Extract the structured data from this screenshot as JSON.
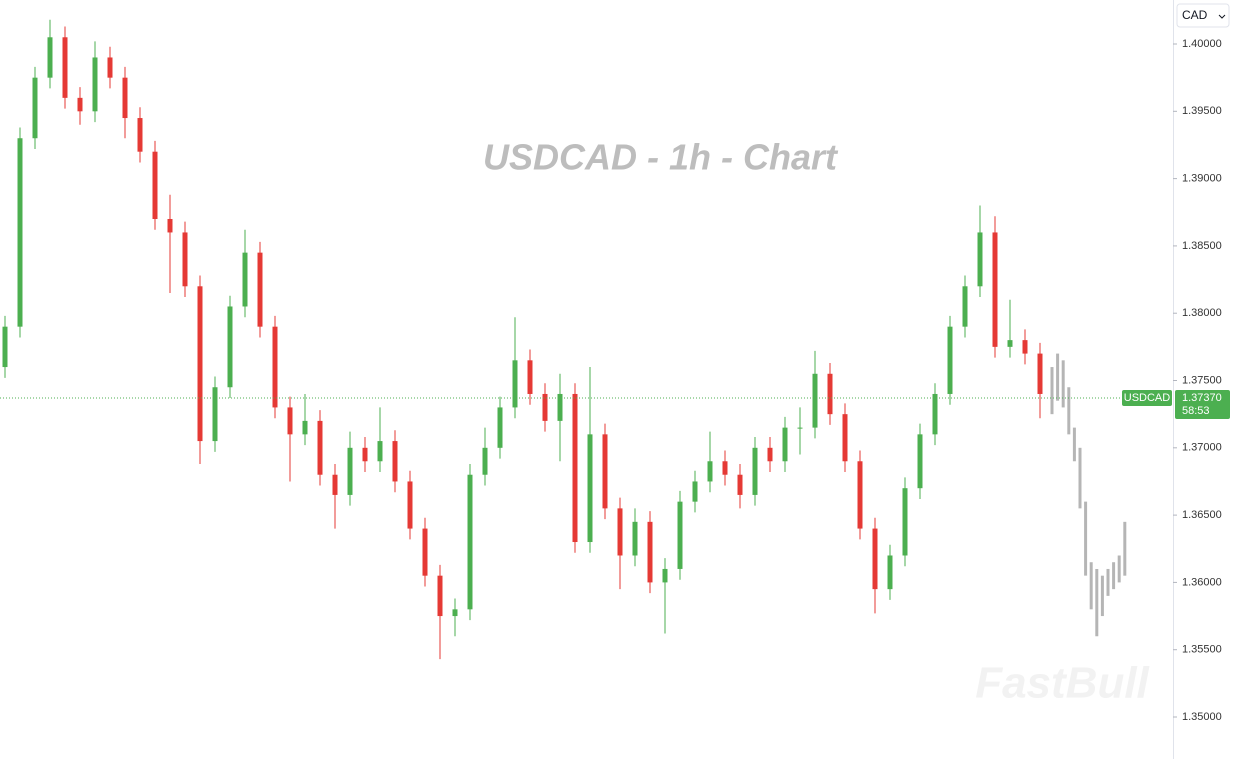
{
  "chart_data": {
    "type": "candlestick",
    "title": "USDCAD  - 1h - Chart",
    "currency": "CAD",
    "watermark": "FastBull",
    "up_color": "#4caf50",
    "down_color": "#e53935",
    "projection_color": "#b5b5b5",
    "ylim": [
      1.34688,
      1.40327
    ],
    "yticks": [
      {
        "value": 1.4,
        "label": "1.40000"
      },
      {
        "value": 1.395,
        "label": "1.39500"
      },
      {
        "value": 1.39,
        "label": "1.39000"
      },
      {
        "value": 1.385,
        "label": "1.38500"
      },
      {
        "value": 1.38,
        "label": "1.38000"
      },
      {
        "value": 1.375,
        "label": "1.37500"
      },
      {
        "value": 1.37,
        "label": "1.37000"
      },
      {
        "value": 1.365,
        "label": "1.36500"
      },
      {
        "value": 1.36,
        "label": "1.36000"
      },
      {
        "value": 1.355,
        "label": "1.35500"
      },
      {
        "value": 1.35,
        "label": "1.35000"
      }
    ],
    "open": [
      1.376,
      1.379,
      1.393,
      1.3975,
      1.4005,
      1.396,
      1.395,
      1.399,
      1.3975,
      1.3945,
      1.392,
      1.387,
      1.386,
      1.382,
      1.3705,
      1.3745,
      1.3805,
      1.3845,
      1.379,
      1.373,
      1.371,
      1.372,
      1.368,
      1.3665,
      1.37,
      1.369,
      1.3705,
      1.3675,
      1.364,
      1.3605,
      1.3575,
      1.358,
      1.368,
      1.37,
      1.373,
      1.3765,
      1.374,
      1.372,
      1.374,
      1.363,
      1.371,
      1.3655,
      1.362,
      1.3645,
      1.36,
      1.361,
      1.366,
      1.3675,
      1.369,
      1.368,
      1.3665,
      1.37,
      1.369,
      1.3715,
      1.3715,
      1.3755,
      1.3725,
      1.369,
      1.364,
      1.3595,
      1.362,
      1.367,
      1.371,
      1.374,
      1.379,
      1.382,
      1.386,
      1.3775,
      1.378,
      1.377
    ],
    "high": [
      1.3798,
      1.3938,
      1.3983,
      1.4018,
      1.4013,
      1.3968,
      1.4002,
      1.3998,
      1.3983,
      1.3953,
      1.3928,
      1.3888,
      1.3868,
      1.3828,
      1.3753,
      1.3813,
      1.3862,
      1.3853,
      1.3798,
      1.3738,
      1.374,
      1.3728,
      1.3688,
      1.3712,
      1.3708,
      1.373,
      1.3713,
      1.3683,
      1.3648,
      1.3613,
      1.3588,
      1.3688,
      1.3715,
      1.3738,
      1.3797,
      1.3773,
      1.3748,
      1.3755,
      1.3748,
      1.376,
      1.3718,
      1.3663,
      1.3655,
      1.3653,
      1.3618,
      1.3668,
      1.3683,
      1.3712,
      1.3698,
      1.3688,
      1.3708,
      1.3708,
      1.3723,
      1.373,
      1.3772,
      1.3763,
      1.3733,
      1.3698,
      1.3648,
      1.3628,
      1.3678,
      1.3718,
      1.3748,
      1.3798,
      1.3828,
      1.388,
      1.3872,
      1.381,
      1.3788,
      1.3778
    ],
    "low": [
      1.3752,
      1.3782,
      1.3922,
      1.3967,
      1.3952,
      1.394,
      1.3942,
      1.3967,
      1.393,
      1.3912,
      1.3862,
      1.3815,
      1.3812,
      1.3688,
      1.3697,
      1.3737,
      1.3797,
      1.3782,
      1.3722,
      1.3675,
      1.3702,
      1.3672,
      1.364,
      1.3657,
      1.3682,
      1.3682,
      1.3667,
      1.3632,
      1.3597,
      1.3543,
      1.356,
      1.3572,
      1.3672,
      1.3692,
      1.3722,
      1.3732,
      1.3712,
      1.369,
      1.3622,
      1.3622,
      1.3647,
      1.3595,
      1.3612,
      1.3592,
      1.3562,
      1.3602,
      1.3652,
      1.3667,
      1.3672,
      1.3655,
      1.3657,
      1.3682,
      1.3682,
      1.3695,
      1.3707,
      1.3717,
      1.3682,
      1.3632,
      1.3577,
      1.3587,
      1.3612,
      1.3662,
      1.3702,
      1.3732,
      1.3782,
      1.3812,
      1.3767,
      1.3767,
      1.3762,
      1.3722
    ],
    "close": [
      1.379,
      1.393,
      1.3975,
      1.4005,
      1.396,
      1.395,
      1.399,
      1.3975,
      1.3945,
      1.392,
      1.387,
      1.386,
      1.382,
      1.3705,
      1.3745,
      1.3805,
      1.3845,
      1.379,
      1.373,
      1.371,
      1.372,
      1.368,
      1.3665,
      1.37,
      1.369,
      1.3705,
      1.3675,
      1.364,
      1.3605,
      1.3575,
      1.358,
      1.368,
      1.37,
      1.373,
      1.3765,
      1.374,
      1.372,
      1.374,
      1.363,
      1.371,
      1.3655,
      1.362,
      1.3645,
      1.36,
      1.361,
      1.366,
      1.3675,
      1.369,
      1.368,
      1.3665,
      1.37,
      1.369,
      1.3715,
      1.3715,
      1.3755,
      1.3725,
      1.369,
      1.364,
      1.3595,
      1.362,
      1.367,
      1.371,
      1.374,
      1.379,
      1.382,
      1.386,
      1.3775,
      1.378,
      1.377,
      1.374
    ],
    "projection": {
      "high": [
        1.376,
        1.377,
        1.3765,
        1.3745,
        1.3715,
        1.37,
        1.366,
        1.3615,
        1.361,
        1.3605,
        1.361,
        1.3615,
        1.362,
        1.3645
      ],
      "low": [
        1.3725,
        1.3735,
        1.373,
        1.371,
        1.369,
        1.3655,
        1.3605,
        1.358,
        1.356,
        1.3575,
        1.359,
        1.3595,
        1.36,
        1.3605
      ]
    },
    "last_price": {
      "symbol": "USDCAD",
      "price": {
        "value": 1.3737,
        "label": "1.37370"
      },
      "countdown": "58:53",
      "color": "#4caf50"
    }
  }
}
